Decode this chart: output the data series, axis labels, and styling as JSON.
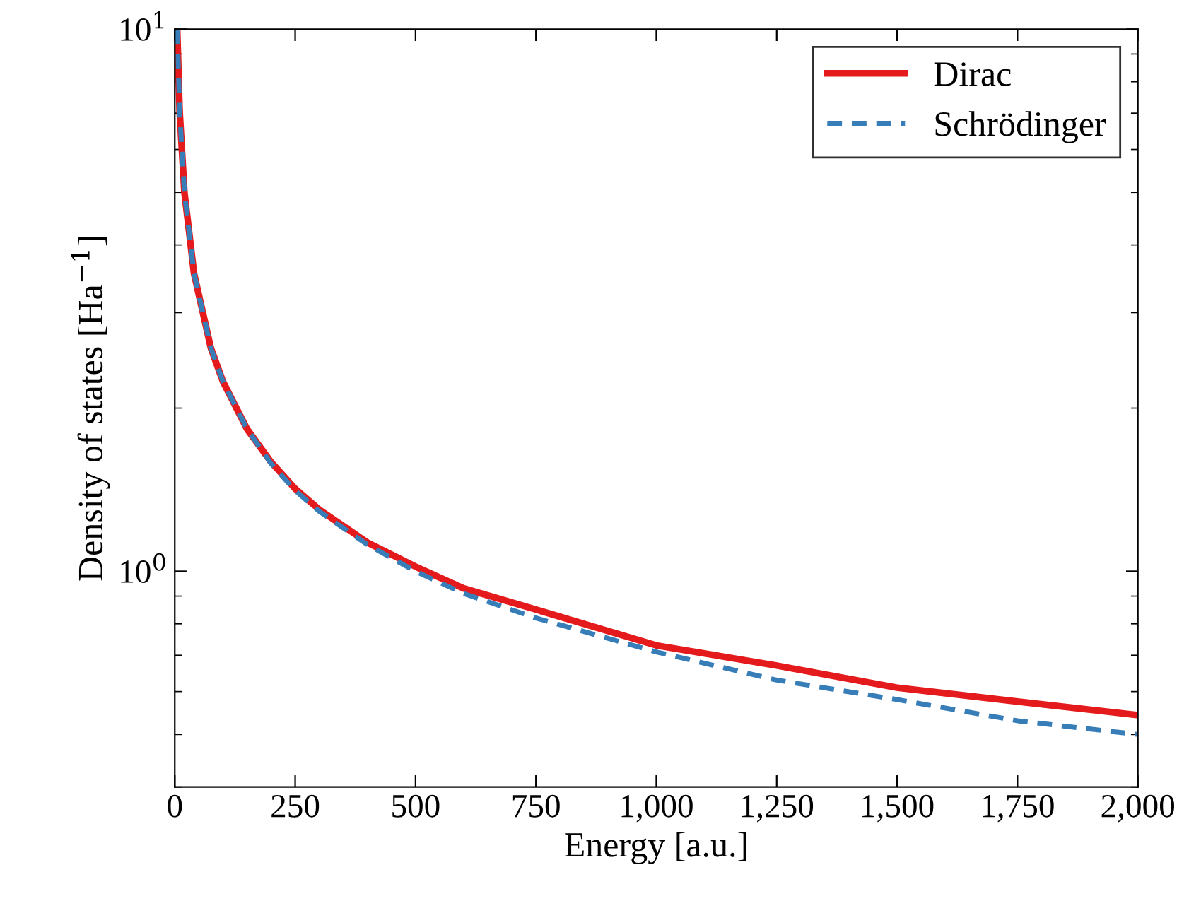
{
  "chart_data": {
    "type": "line",
    "xlabel": "Energy [a.u.]",
    "ylabel": "Density of states [Ha$^{−1}$]",
    "log": "y",
    "legend": "top right",
    "grid": false,
    "xlim": [
      0,
      2000
    ],
    "xticks": [
      0,
      250,
      500,
      750,
      {
        "value": 1000,
        "label": "1,000"
      },
      {
        "value": 1250,
        "label": "1,250"
      },
      {
        "value": 1500,
        "label": "1,500"
      },
      {
        "value": 1750,
        "label": "1,750"
      },
      {
        "value": 2000,
        "label": "2,000"
      }
    ],
    "ylim": [
      0.4,
      10
    ],
    "yticks": [
      {
        "value": 1,
        "label": "10$^{0}$"
      },
      {
        "value": 10,
        "label": "10$^{1}$"
      }
    ],
    "series": [
      {
        "name": "Dirac",
        "color": "#e41a1c",
        "line_style": "solid",
        "x": [
          5,
          10,
          20,
          40,
          75,
          100,
          150,
          200,
          250,
          300,
          400,
          500,
          600,
          750,
          1000,
          1250,
          1500,
          1750,
          2000
        ],
        "values": [
          10,
          7.07,
          5,
          3.54,
          2.58,
          2.24,
          1.83,
          1.59,
          1.42,
          1.3,
          1.13,
          1.02,
          0.93,
          0.85,
          0.73,
          0.67,
          0.61,
          0.575,
          0.543
        ]
      },
      {
        "name": "Schrödinger",
        "color": "#377eb8",
        "line_style": "dashed",
        "x": [
          5,
          10,
          20,
          40,
          75,
          100,
          150,
          200,
          250,
          300,
          400,
          500,
          600,
          750,
          1000,
          1250,
          1500,
          1750,
          2000
        ],
        "values": [
          10,
          7.07,
          5,
          3.54,
          2.58,
          2.24,
          1.83,
          1.58,
          1.41,
          1.29,
          1.12,
          1.0,
          0.91,
          0.82,
          0.71,
          0.63,
          0.58,
          0.53,
          0.5
        ]
      }
    ]
  }
}
